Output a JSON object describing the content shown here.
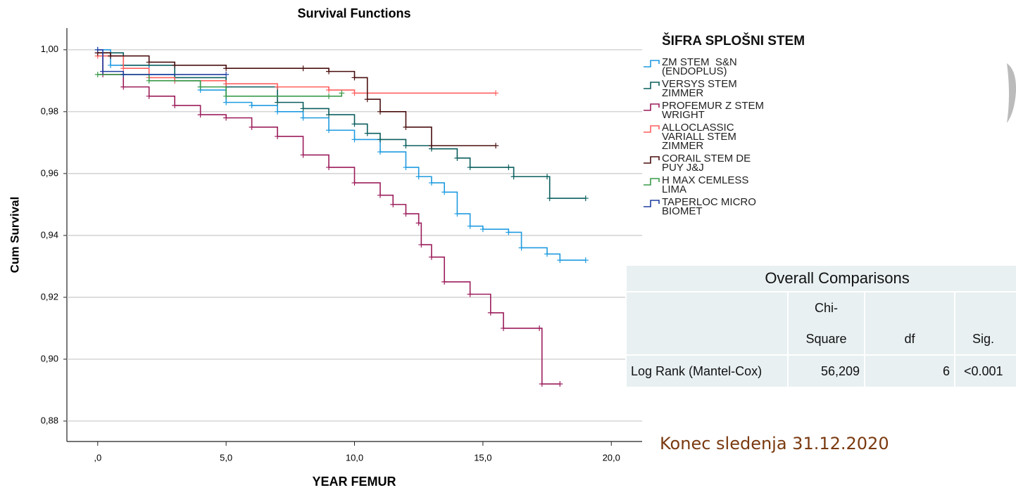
{
  "chart_data": {
    "type": "line",
    "step": "post",
    "title": "Survival Functions",
    "xlabel": "YEAR FEMUR",
    "ylabel": "Cum Survival",
    "legend_title": "ŠIFRA SPLOŠNI STEM",
    "xlim": [
      -1.2,
      21.2
    ],
    "ylim": [
      0.8734,
      1.007
    ],
    "xticks": [
      {
        "value": 0,
        "label": ",0"
      },
      {
        "value": 5,
        "label": "5,0"
      },
      {
        "value": 10,
        "label": "10,0"
      },
      {
        "value": 15,
        "label": "15,0"
      },
      {
        "value": 20,
        "label": "20,0"
      }
    ],
    "yticks": [
      {
        "value": 0.88,
        "label": "0,88"
      },
      {
        "value": 0.9,
        "label": "0,90"
      },
      {
        "value": 0.92,
        "label": "0,92"
      },
      {
        "value": 0.94,
        "label": "0,94"
      },
      {
        "value": 0.96,
        "label": "0,96"
      },
      {
        "value": 0.98,
        "label": "0,98"
      },
      {
        "value": 1.0,
        "label": "1,00"
      }
    ],
    "grid": true,
    "series": [
      {
        "name": "ZM STEM  S&N (ENDOPLUS)",
        "color": "#1f9be0",
        "x": [
          0,
          0.5,
          2,
          3,
          4,
          5,
          6,
          7,
          8,
          9,
          10,
          11,
          12,
          12.5,
          13,
          13.5,
          14,
          14.5,
          15,
          16,
          16.5,
          17.5,
          18,
          19
        ],
        "values": [
          1.0,
          0.995,
          0.992,
          0.99,
          0.987,
          0.983,
          0.982,
          0.98,
          0.978,
          0.974,
          0.971,
          0.967,
          0.962,
          0.959,
          0.957,
          0.954,
          0.947,
          0.943,
          0.942,
          0.941,
          0.936,
          0.934,
          0.932,
          0.932
        ]
      },
      {
        "name": "VERSYS STEM  ZIMMER",
        "color": "#0b5e5e",
        "x": [
          0,
          1,
          3,
          5,
          7,
          8,
          9,
          10,
          10.5,
          11,
          12,
          13,
          14,
          14.5,
          16,
          16.2,
          17.5,
          17.6,
          19
        ],
        "values": [
          0.999,
          0.995,
          0.991,
          0.988,
          0.983,
          0.981,
          0.979,
          0.976,
          0.973,
          0.971,
          0.969,
          0.968,
          0.965,
          0.962,
          0.962,
          0.959,
          0.959,
          0.952,
          0.952
        ]
      },
      {
        "name": "PROFEMUR Z STEM WRIGHT",
        "color": "#9b1d5b",
        "x": [
          0,
          0.2,
          1,
          2,
          3,
          4,
          5,
          6,
          7,
          8,
          9,
          10,
          11,
          11.5,
          12,
          12.5,
          12.6,
          13,
          13.5,
          14.5,
          15.3,
          15.8,
          17.2,
          17.3,
          18
        ],
        "values": [
          0.999,
          0.992,
          0.988,
          0.985,
          0.982,
          0.979,
          0.978,
          0.975,
          0.972,
          0.966,
          0.962,
          0.957,
          0.953,
          0.95,
          0.947,
          0.944,
          0.937,
          0.933,
          0.925,
          0.921,
          0.915,
          0.91,
          0.91,
          0.892,
          0.892
        ]
      },
      {
        "name": "ALLOCLASSIC VARIALL STEM ZIMMER",
        "color": "#ff5f5f",
        "x": [
          0,
          1,
          2,
          3,
          5,
          7,
          9,
          10,
          15.5
        ],
        "values": [
          0.998,
          0.994,
          0.991,
          0.99,
          0.989,
          0.988,
          0.987,
          0.986,
          0.986
        ]
      },
      {
        "name": "CORAIL STEM DE PUY J&J",
        "color": "#4a0f0f",
        "x": [
          0,
          0.5,
          2,
          3,
          5,
          8,
          9,
          10,
          10.5,
          11,
          12,
          13,
          15.5
        ],
        "values": [
          0.999,
          0.998,
          0.996,
          0.995,
          0.994,
          0.994,
          0.993,
          0.991,
          0.984,
          0.98,
          0.975,
          0.969,
          0.969
        ]
      },
      {
        "name": "H MAX CEMLESS LIMA",
        "color": "#3a9a4a",
        "x": [
          0,
          1,
          2,
          4,
          5,
          9,
          9.5
        ],
        "values": [
          0.992,
          0.992,
          0.99,
          0.988,
          0.985,
          0.985,
          0.986
        ]
      },
      {
        "name": "TAPERLOC MICRO BIOMET",
        "color": "#1f3fa0",
        "x": [
          0,
          0.2,
          1,
          5
        ],
        "values": [
          1.0,
          0.993,
          0.992,
          0.992
        ]
      }
    ]
  },
  "comparison_table": {
    "title": "Overall Comparisons",
    "header": [
      "",
      "Chi-Square",
      "df",
      "Sig."
    ],
    "rows": [
      [
        "Log Rank (Mantel-Cox)",
        "56,209",
        "6",
        "<0.001"
      ]
    ]
  },
  "note": "Konec sledenja 31.12.2020"
}
